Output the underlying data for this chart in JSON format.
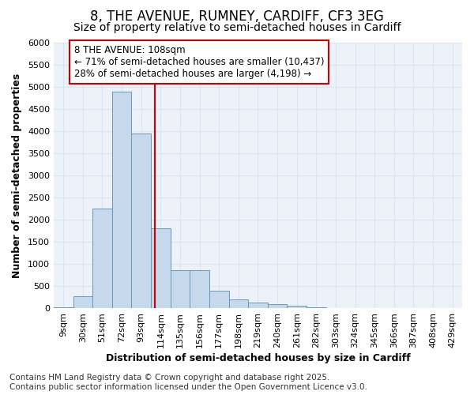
{
  "title_line1": "8, THE AVENUE, RUMNEY, CARDIFF, CF3 3EG",
  "title_line2": "Size of property relative to semi-detached houses in Cardiff",
  "xlabel": "Distribution of semi-detached houses by size in Cardiff",
  "ylabel": "Number of semi-detached properties",
  "bar_color": "#c6d9ec",
  "bar_edge_color": "#6699bb",
  "categories": [
    "9sqm",
    "30sqm",
    "51sqm",
    "72sqm",
    "93sqm",
    "114sqm",
    "135sqm",
    "156sqm",
    "177sqm",
    "198sqm",
    "219sqm",
    "240sqm",
    "261sqm",
    "282sqm",
    "303sqm",
    "324sqm",
    "345sqm",
    "366sqm",
    "387sqm",
    "408sqm",
    "429sqm"
  ],
  "values": [
    20,
    270,
    2250,
    4900,
    3950,
    1800,
    850,
    850,
    400,
    200,
    120,
    90,
    55,
    20,
    10,
    5,
    3,
    2,
    1,
    0,
    0
  ],
  "ylim": [
    0,
    6000
  ],
  "yticks": [
    0,
    500,
    1000,
    1500,
    2000,
    2500,
    3000,
    3500,
    4000,
    4500,
    5000,
    5500,
    6000
  ],
  "property_label": "8 THE AVENUE: 108sqm",
  "pct_smaller": 71,
  "count_smaller": 10437,
  "pct_larger": 28,
  "count_larger": 4198,
  "vline_color": "#cc0000",
  "annotation_box_color": "#cc0000",
  "grid_color": "#d8e4f0",
  "background_color": "#edf2f9",
  "footer_line1": "Contains HM Land Registry data © Crown copyright and database right 2025.",
  "footer_line2": "Contains public sector information licensed under the Open Government Licence v3.0.",
  "title_fontsize": 12,
  "subtitle_fontsize": 10,
  "axis_label_fontsize": 9,
  "tick_fontsize": 8,
  "annotation_fontsize": 8.5,
  "footer_fontsize": 7.5
}
